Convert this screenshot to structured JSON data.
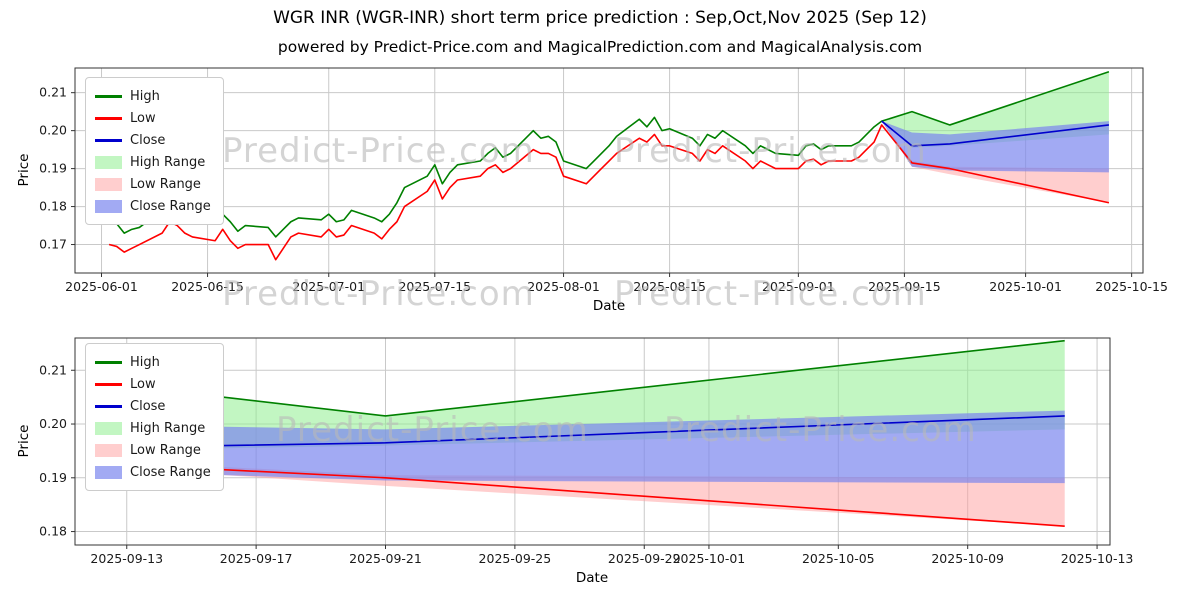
{
  "figure": {
    "title": "WGR INR (WGR-INR) short term price prediction : Sep,Oct,Nov 2025 (Sep 12)",
    "subtitle": "powered by Predict-Price.com and MagicalPrediction.com and MagicalAnalysis.com",
    "watermark": "Predict-Price.com"
  },
  "chart_data": [
    {
      "type": "line",
      "title": "",
      "xlabel": "Date",
      "ylabel": "Price",
      "grid": true,
      "legend_position": "upper left",
      "xlim": [
        -3.5,
        137.5
      ],
      "ylim": [
        0.1625,
        0.2165
      ],
      "xticks": [
        {
          "v": 0,
          "label": "2025-06-01"
        },
        {
          "v": 14,
          "label": "2025-06-15"
        },
        {
          "v": 30,
          "label": "2025-07-01"
        },
        {
          "v": 44,
          "label": "2025-07-15"
        },
        {
          "v": 61,
          "label": "2025-08-01"
        },
        {
          "v": 75,
          "label": "2025-08-15"
        },
        {
          "v": 92,
          "label": "2025-09-01"
        },
        {
          "v": 106,
          "label": "2025-09-15"
        },
        {
          "v": 122,
          "label": "2025-10-01"
        },
        {
          "v": 136,
          "label": "2025-10-15"
        }
      ],
      "yticks": [
        {
          "v": 0.17,
          "label": "0.17"
        },
        {
          "v": 0.18,
          "label": "0.18"
        },
        {
          "v": 0.19,
          "label": "0.19"
        },
        {
          "v": 0.2,
          "label": "0.20"
        },
        {
          "v": 0.21,
          "label": "0.21"
        }
      ],
      "legend": [
        {
          "label": "High",
          "type": "line",
          "color": "#008000",
          "opacity": 1
        },
        {
          "label": "Low",
          "type": "line",
          "color": "#ff0000",
          "opacity": 1
        },
        {
          "label": "Close",
          "type": "line",
          "color": "#0000cd",
          "opacity": 1
        },
        {
          "label": "High Range",
          "type": "patch",
          "color": "#90ee90",
          "opacity": 0.55
        },
        {
          "label": "Low Range",
          "type": "patch",
          "color": "#ff9e9e",
          "opacity": 0.5
        },
        {
          "label": "Close Range",
          "type": "patch",
          "color": "#7b86ee",
          "opacity": 0.7
        }
      ],
      "bands": [
        {
          "name": "High Range",
          "color": "#90ee90",
          "opacity": 0.55,
          "x": [
            103,
            107,
            112,
            133
          ],
          "upper": [
            0.2025,
            0.205,
            0.2015,
            0.2155
          ],
          "lower": [
            0.2025,
            0.1955,
            0.196,
            0.199
          ]
        },
        {
          "name": "Low Range",
          "color": "#ff9e9e",
          "opacity": 0.5,
          "x": [
            103,
            107,
            112,
            133
          ],
          "upper": [
            0.2025,
            0.192,
            0.1905,
            0.19
          ],
          "lower": [
            0.2025,
            0.1905,
            0.1885,
            0.181
          ]
        },
        {
          "name": "Close Range",
          "color": "#7b86ee",
          "opacity": 0.7,
          "x": [
            103,
            107,
            112,
            133
          ],
          "upper": [
            0.2025,
            0.1995,
            0.199,
            0.2025
          ],
          "lower": [
            0.2025,
            0.1905,
            0.1895,
            0.189
          ]
        }
      ],
      "series": [
        {
          "name": "High",
          "color": "#008000",
          "x": [
            1,
            2,
            3,
            4,
            5,
            8,
            9,
            10,
            11,
            12,
            15,
            16,
            17,
            18,
            19,
            22,
            23,
            24,
            25,
            26,
            29,
            30,
            31,
            32,
            33,
            36,
            37,
            38,
            39,
            40,
            43,
            44,
            45,
            46,
            47,
            50,
            51,
            52,
            53,
            54,
            57,
            58,
            59,
            60,
            61,
            64,
            65,
            66,
            67,
            68,
            71,
            72,
            73,
            74,
            75,
            78,
            79,
            80,
            81,
            82,
            85,
            86,
            87,
            88,
            89,
            92,
            93,
            94,
            95,
            96,
            99,
            100,
            101,
            102,
            103,
            107,
            112,
            133
          ],
          "y": [
            0.176,
            0.1755,
            0.173,
            0.174,
            0.1745,
            0.179,
            0.18,
            0.1795,
            0.178,
            0.1765,
            0.176,
            0.178,
            0.176,
            0.1735,
            0.175,
            0.1745,
            0.172,
            0.174,
            0.176,
            0.177,
            0.1765,
            0.178,
            0.176,
            0.1765,
            0.179,
            0.177,
            0.176,
            0.178,
            0.181,
            0.185,
            0.188,
            0.191,
            0.186,
            0.189,
            0.191,
            0.192,
            0.194,
            0.1955,
            0.193,
            0.194,
            0.2,
            0.198,
            0.1985,
            0.197,
            0.192,
            0.19,
            0.192,
            0.194,
            0.196,
            0.1985,
            0.203,
            0.201,
            0.2035,
            0.2,
            0.2005,
            0.198,
            0.196,
            0.199,
            0.198,
            0.2,
            0.196,
            0.194,
            0.196,
            0.195,
            0.194,
            0.1935,
            0.196,
            0.1965,
            0.195,
            0.196,
            0.196,
            0.197,
            0.199,
            0.201,
            0.2025,
            0.205,
            0.2015,
            0.2155
          ]
        },
        {
          "name": "Low",
          "color": "#ff0000",
          "x": [
            1,
            2,
            3,
            4,
            5,
            8,
            9,
            10,
            11,
            12,
            15,
            16,
            17,
            18,
            19,
            22,
            23,
            24,
            25,
            26,
            29,
            30,
            31,
            32,
            33,
            36,
            37,
            38,
            39,
            40,
            43,
            44,
            45,
            46,
            47,
            50,
            51,
            52,
            53,
            54,
            57,
            58,
            59,
            60,
            61,
            64,
            65,
            66,
            67,
            68,
            71,
            72,
            73,
            74,
            75,
            78,
            79,
            80,
            81,
            82,
            85,
            86,
            87,
            88,
            89,
            92,
            93,
            94,
            95,
            96,
            99,
            100,
            101,
            102,
            103,
            107,
            112,
            133
          ],
          "y": [
            0.17,
            0.1695,
            0.168,
            0.169,
            0.17,
            0.173,
            0.176,
            0.175,
            0.173,
            0.172,
            0.171,
            0.174,
            0.171,
            0.169,
            0.17,
            0.17,
            0.166,
            0.169,
            0.172,
            0.173,
            0.172,
            0.174,
            0.172,
            0.1725,
            0.175,
            0.173,
            0.1715,
            0.174,
            0.176,
            0.18,
            0.184,
            0.187,
            0.182,
            0.185,
            0.187,
            0.188,
            0.19,
            0.191,
            0.189,
            0.19,
            0.195,
            0.194,
            0.194,
            0.193,
            0.188,
            0.186,
            0.188,
            0.19,
            0.192,
            0.194,
            0.198,
            0.197,
            0.199,
            0.196,
            0.196,
            0.194,
            0.192,
            0.195,
            0.194,
            0.196,
            0.192,
            0.19,
            0.192,
            0.191,
            0.19,
            0.19,
            0.192,
            0.1925,
            0.191,
            0.192,
            0.192,
            0.193,
            0.195,
            0.197,
            0.2015,
            0.1915,
            0.19,
            0.181
          ]
        },
        {
          "name": "Close",
          "color": "#0000cd",
          "x": [
            103,
            107,
            112,
            133
          ],
          "y": [
            0.2025,
            0.196,
            0.1965,
            0.2015
          ]
        }
      ]
    },
    {
      "type": "line",
      "title": "",
      "xlabel": "Date",
      "ylabel": "Price",
      "grid": true,
      "legend_position": "upper left",
      "xlim": [
        -0.6,
        31.4
      ],
      "ylim": [
        0.1775,
        0.216
      ],
      "xticks": [
        {
          "v": 1,
          "label": "2025-09-13"
        },
        {
          "v": 5,
          "label": "2025-09-17"
        },
        {
          "v": 9,
          "label": "2025-09-21"
        },
        {
          "v": 13,
          "label": "2025-09-25"
        },
        {
          "v": 17,
          "label": "2025-09-29"
        },
        {
          "v": 19,
          "label": "2025-10-01"
        },
        {
          "v": 23,
          "label": "2025-10-05"
        },
        {
          "v": 27,
          "label": "2025-10-09"
        },
        {
          "v": 31,
          "label": "2025-10-13"
        }
      ],
      "yticks": [
        {
          "v": 0.18,
          "label": "0.18"
        },
        {
          "v": 0.19,
          "label": "0.19"
        },
        {
          "v": 0.2,
          "label": "0.20"
        },
        {
          "v": 0.21,
          "label": "0.21"
        }
      ],
      "legend": [
        {
          "label": "High",
          "type": "line",
          "color": "#008000",
          "opacity": 1
        },
        {
          "label": "Low",
          "type": "line",
          "color": "#ff0000",
          "opacity": 1
        },
        {
          "label": "Close",
          "type": "line",
          "color": "#0000cd",
          "opacity": 1
        },
        {
          "label": "High Range",
          "type": "patch",
          "color": "#90ee90",
          "opacity": 0.55
        },
        {
          "label": "Low Range",
          "type": "patch",
          "color": "#ff9e9e",
          "opacity": 0.5
        },
        {
          "label": "Close Range",
          "type": "patch",
          "color": "#7b86ee",
          "opacity": 0.7
        }
      ],
      "bands": [
        {
          "name": "High Range",
          "color": "#90ee90",
          "opacity": 0.55,
          "x": [
            0,
            4,
            9,
            30
          ],
          "upper": [
            0.2025,
            0.205,
            0.2015,
            0.2155
          ],
          "lower": [
            0.2025,
            0.1955,
            0.196,
            0.199
          ]
        },
        {
          "name": "Low Range",
          "color": "#ff9e9e",
          "opacity": 0.5,
          "x": [
            0,
            4,
            9,
            30
          ],
          "upper": [
            0.2025,
            0.192,
            0.1905,
            0.19
          ],
          "lower": [
            0.2025,
            0.1905,
            0.1885,
            0.181
          ]
        },
        {
          "name": "Close Range",
          "color": "#7b86ee",
          "opacity": 0.7,
          "x": [
            0,
            4,
            9,
            30
          ],
          "upper": [
            0.2025,
            0.1995,
            0.199,
            0.2025
          ],
          "lower": [
            0.2025,
            0.1905,
            0.1895,
            0.189
          ]
        }
      ],
      "series": [
        {
          "name": "High",
          "color": "#008000",
          "x": [
            0,
            4,
            9,
            30
          ],
          "y": [
            0.2025,
            0.205,
            0.2015,
            0.2155
          ]
        },
        {
          "name": "Low",
          "color": "#ff0000",
          "x": [
            0,
            4,
            9,
            30
          ],
          "y": [
            0.2015,
            0.1915,
            0.19,
            0.181
          ]
        },
        {
          "name": "Close",
          "color": "#0000cd",
          "x": [
            0,
            4,
            9,
            30
          ],
          "y": [
            0.2025,
            0.196,
            0.1965,
            0.2015
          ]
        }
      ]
    }
  ]
}
